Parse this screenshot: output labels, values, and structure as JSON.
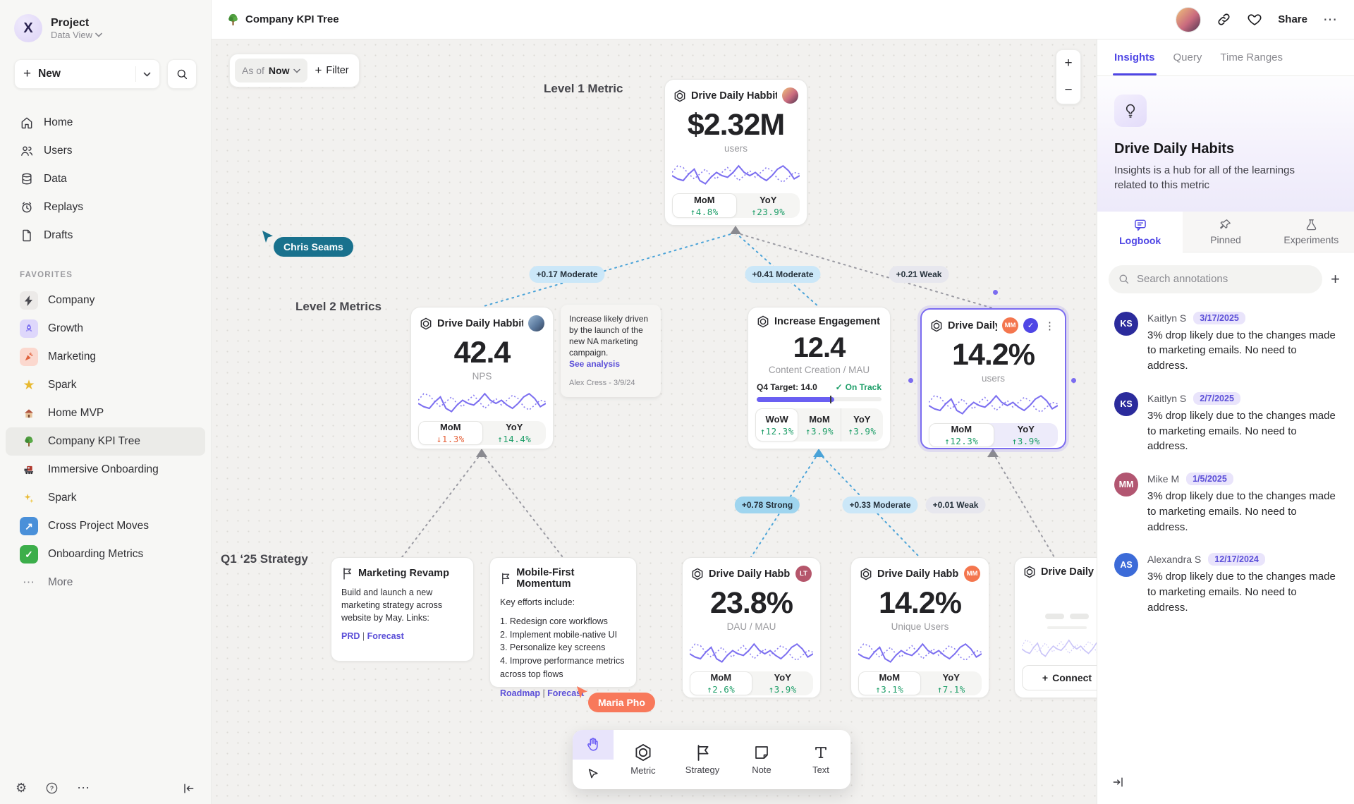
{
  "icons": {
    "plus": "+",
    "minus": "−",
    "ellipsis": "⋯",
    "kebab": "⋮",
    "check": "✓"
  },
  "sidebar": {
    "project_name": "Project",
    "project_view": "Data View",
    "new_label": "New",
    "nav": [
      {
        "icon": "home-icon",
        "label": "Home"
      },
      {
        "icon": "users-icon",
        "label": "Users"
      },
      {
        "icon": "database-icon",
        "label": "Data"
      },
      {
        "icon": "replay-clock-icon",
        "label": "Replays"
      },
      {
        "icon": "draft-file-icon",
        "label": "Drafts"
      }
    ],
    "favorites_label": "FAVORITES",
    "favorites": [
      {
        "icon": "bolt-icon",
        "label": "Company"
      },
      {
        "icon": "rocket-icon",
        "label": "Growth"
      },
      {
        "icon": "confetti-icon",
        "label": "Marketing"
      },
      {
        "icon": "star-icon",
        "label": "Spark"
      },
      {
        "icon": "house-icon",
        "label": "Home MVP"
      },
      {
        "icon": "tree-icon",
        "label": "Company KPI Tree",
        "active": true
      },
      {
        "icon": "train-icon",
        "label": "Immersive Onboarding"
      },
      {
        "icon": "sparkles-icon",
        "label": "Spark"
      },
      {
        "icon": "arrow-up-right-icon",
        "label": "Cross Project Moves"
      },
      {
        "icon": "check-icon",
        "label": "Onboarding Metrics"
      }
    ],
    "more_label": "More"
  },
  "topbar": {
    "title": "Company KPI Tree",
    "share_label": "Share"
  },
  "canvas": {
    "as_of_label": "As of",
    "as_of_value": "Now",
    "filter_label": "Filter",
    "level1_label": "Level 1 Metric",
    "level2_label": "Level 2 Metrics",
    "q1_label": "Q1 ‘25 Strategy",
    "cursors": [
      {
        "name": "Chris Seams",
        "color": "#19718d"
      },
      {
        "name": "Maria Pho",
        "color": "#f8795b"
      }
    ],
    "edges": [
      {
        "label": "+0.17 Moderate",
        "strength": "moderate"
      },
      {
        "label": "+0.41 Moderate",
        "strength": "moderate"
      },
      {
        "label": "+0.21 Weak",
        "strength": "weak"
      },
      {
        "label": "+0.78 Strong",
        "strength": "strong"
      },
      {
        "label": "+0.33 Moderate",
        "strength": "moderate"
      },
      {
        "label": "+0.01 Weak",
        "strength": "weak"
      }
    ]
  },
  "cards": {
    "level1": {
      "title": "Drive Daily Habbits",
      "value": "$2.32M",
      "unit": "users",
      "deltas": [
        {
          "label": "MoM",
          "value": "↑4.8%"
        },
        {
          "label": "YoY",
          "value": "↑23.9%"
        }
      ]
    },
    "nps": {
      "title": "Drive Daily Habbits",
      "value": "42.4",
      "unit": "NPS",
      "deltas": [
        {
          "label": "MoM",
          "value": "↓1.3%"
        },
        {
          "label": "YoY",
          "value": "↑14.4%"
        }
      ]
    },
    "engagement": {
      "title": "Increase Engagement",
      "value": "12.4",
      "unit": "Content Creation / MAU",
      "target_label": "Q4 Target: 14.0",
      "status": "On Track",
      "progress_pct": 62,
      "deltas": [
        {
          "label": "WoW",
          "value": "↑12.3%"
        },
        {
          "label": "MoM",
          "value": "↑3.9%"
        },
        {
          "label": "YoY",
          "value": "↑3.9%"
        }
      ]
    },
    "selected": {
      "title": "Drive Daily Habb..",
      "value": "14.2%",
      "unit": "users",
      "badge": "MM",
      "badge_color": "#f4764e",
      "deltas": [
        {
          "label": "MoM",
          "value": "↑12.3%"
        },
        {
          "label": "YoY",
          "value": "↑3.9%"
        }
      ]
    },
    "dau": {
      "title": "Drive Daily Habbits",
      "value": "23.8%",
      "unit": "DAU / MAU",
      "badge": "LT",
      "badge_color": "#b5566b",
      "deltas": [
        {
          "label": "MoM",
          "value": "↑2.6%"
        },
        {
          "label": "YoY",
          "value": "↑3.9%"
        }
      ]
    },
    "unique": {
      "title": "Drive Daily Habbits",
      "value": "14.2%",
      "unit": "Unique Users",
      "badge": "MM",
      "badge_color": "#f4764e",
      "deltas": [
        {
          "label": "MoM",
          "value": "↑3.1%"
        },
        {
          "label": "YoY",
          "value": "↑7.1%"
        }
      ]
    },
    "partial": {
      "title": "Drive Daily Hab",
      "connect_label": "Connect"
    }
  },
  "note": {
    "text": "Increase likely driven by the launch of the new NA marketing campaign.",
    "link": "See analysis",
    "author": "Alex Cress - 3/9/24"
  },
  "strategies": {
    "marketing": {
      "title": "Marketing Revamp",
      "body": "Build and launch a new marketing strategy across website by May. Links:",
      "links": [
        {
          "label": "PRD"
        },
        {
          "label": "Forecast"
        }
      ]
    },
    "mobile": {
      "title": "Mobile-First Momentum",
      "intro": "Key efforts include:",
      "items": [
        {
          "text": "1. Redesign core workflows"
        },
        {
          "text": "2. Implement mobile-native UI"
        },
        {
          "text": "3. Personalize key screens"
        },
        {
          "text": "4. Improve performance metrics across top flows"
        }
      ],
      "links": [
        {
          "label": "Roadmap"
        },
        {
          "label": "Forecast"
        }
      ]
    }
  },
  "toolbar": {
    "tools": [
      {
        "icon": "hexagon-metric-icon",
        "label": "Metric"
      },
      {
        "icon": "flag-icon",
        "label": "Strategy"
      },
      {
        "icon": "note-icon",
        "label": "Note"
      },
      {
        "icon": "text-icon",
        "label": "Text"
      }
    ]
  },
  "right_panel": {
    "tabs": [
      {
        "label": "Insights"
      },
      {
        "label": "Query"
      },
      {
        "label": "Time Ranges"
      }
    ],
    "title": "Drive Daily Habits",
    "description": "Insights is a hub for all of the learnings related to this metric",
    "sub_tabs": [
      {
        "label": "Logbook"
      },
      {
        "label": "Pinned"
      },
      {
        "label": "Experiments"
      }
    ],
    "search_placeholder": "Search annotations",
    "annotations": [
      {
        "initials": "KS",
        "name": "Kaitlyn S",
        "date": "3/17/2025",
        "color": "#2b2b9c",
        "text": "3% drop likely due to the changes made to marketing emails. No need to address."
      },
      {
        "initials": "KS",
        "name": "Kaitlyn S",
        "date": "2/7/2025",
        "color": "#2b2b9c",
        "text": "3% drop likely due to the changes made to marketing emails. No need to address."
      },
      {
        "initials": "MM",
        "name": "Mike M",
        "date": "1/5/2025",
        "color": "#b25671",
        "text": "3% drop likely due to the changes made to marketing emails. No need to address."
      },
      {
        "initials": "AS",
        "name": "Alexandra S",
        "date": "12/17/2024",
        "color": "#3c6bd8",
        "text": "3% drop likely due to the changes made to marketing emails. No need to address."
      }
    ]
  },
  "sparkline": {
    "solid": [
      18,
      14,
      12,
      20,
      26,
      12,
      8,
      16,
      22,
      18,
      16,
      22,
      30,
      22,
      18,
      22,
      16,
      12,
      18,
      26,
      30,
      24,
      14,
      18
    ],
    "dotted": [
      22,
      30,
      28,
      20,
      14,
      20,
      26,
      18,
      14,
      22,
      28,
      20,
      12,
      18,
      24,
      16,
      22,
      28,
      24,
      14,
      10,
      16,
      22,
      20
    ]
  }
}
